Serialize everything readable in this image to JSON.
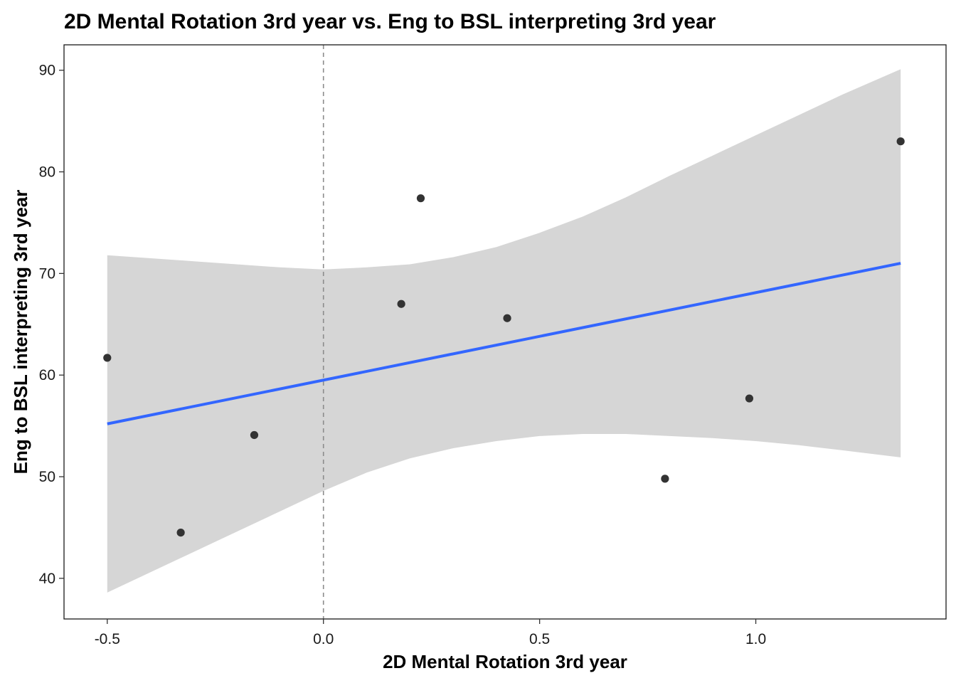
{
  "chart_data": {
    "type": "scatter",
    "title": "2D Mental Rotation 3rd year vs. Eng to BSL interpreting 3rd year",
    "xlabel": "2D Mental Rotation 3rd year",
    "ylabel": "Eng to BSL interpreting 3rd year",
    "xlim": [
      -0.6,
      1.44
    ],
    "ylim": [
      36,
      92.5
    ],
    "x_ticks": [
      -0.5,
      0.0,
      0.5,
      1.0
    ],
    "x_tick_labels": [
      "-0.5",
      "0.0",
      "0.5",
      "1.0"
    ],
    "y_ticks": [
      40,
      50,
      60,
      70,
      80,
      90
    ],
    "y_tick_labels": [
      "40",
      "50",
      "60",
      "70",
      "80",
      "90"
    ],
    "grid": false,
    "reference_line": {
      "x": 0.0,
      "style": "dashed",
      "color": "#8c8c8c"
    },
    "points": {
      "x": [
        -0.5,
        -0.33,
        -0.16,
        0.18,
        0.225,
        0.425,
        0.79,
        0.985,
        1.335
      ],
      "y": [
        61.7,
        44.5,
        54.1,
        67.0,
        77.4,
        65.6,
        49.8,
        57.7,
        83.0
      ],
      "color": "#333333"
    },
    "fit_line": {
      "method": "linear",
      "x": [
        -0.5,
        1.335
      ],
      "y": [
        55.2,
        71.0
      ],
      "color": "#3366ff"
    },
    "confidence_band": {
      "color": "#d6d6d6",
      "x": [
        -0.5,
        -0.3,
        -0.1,
        0.0,
        0.1,
        0.2,
        0.3,
        0.4,
        0.5,
        0.6,
        0.7,
        0.8,
        0.9,
        1.0,
        1.1,
        1.2,
        1.335
      ],
      "upper": [
        71.8,
        71.2,
        70.6,
        70.4,
        70.6,
        70.9,
        71.6,
        72.6,
        74.0,
        75.6,
        77.5,
        79.6,
        81.6,
        83.6,
        85.6,
        87.6,
        90.1
      ],
      "lower": [
        38.6,
        42.6,
        46.6,
        48.6,
        50.4,
        51.8,
        52.8,
        53.5,
        54.0,
        54.2,
        54.2,
        54.0,
        53.8,
        53.5,
        53.1,
        52.6,
        51.9
      ]
    }
  }
}
